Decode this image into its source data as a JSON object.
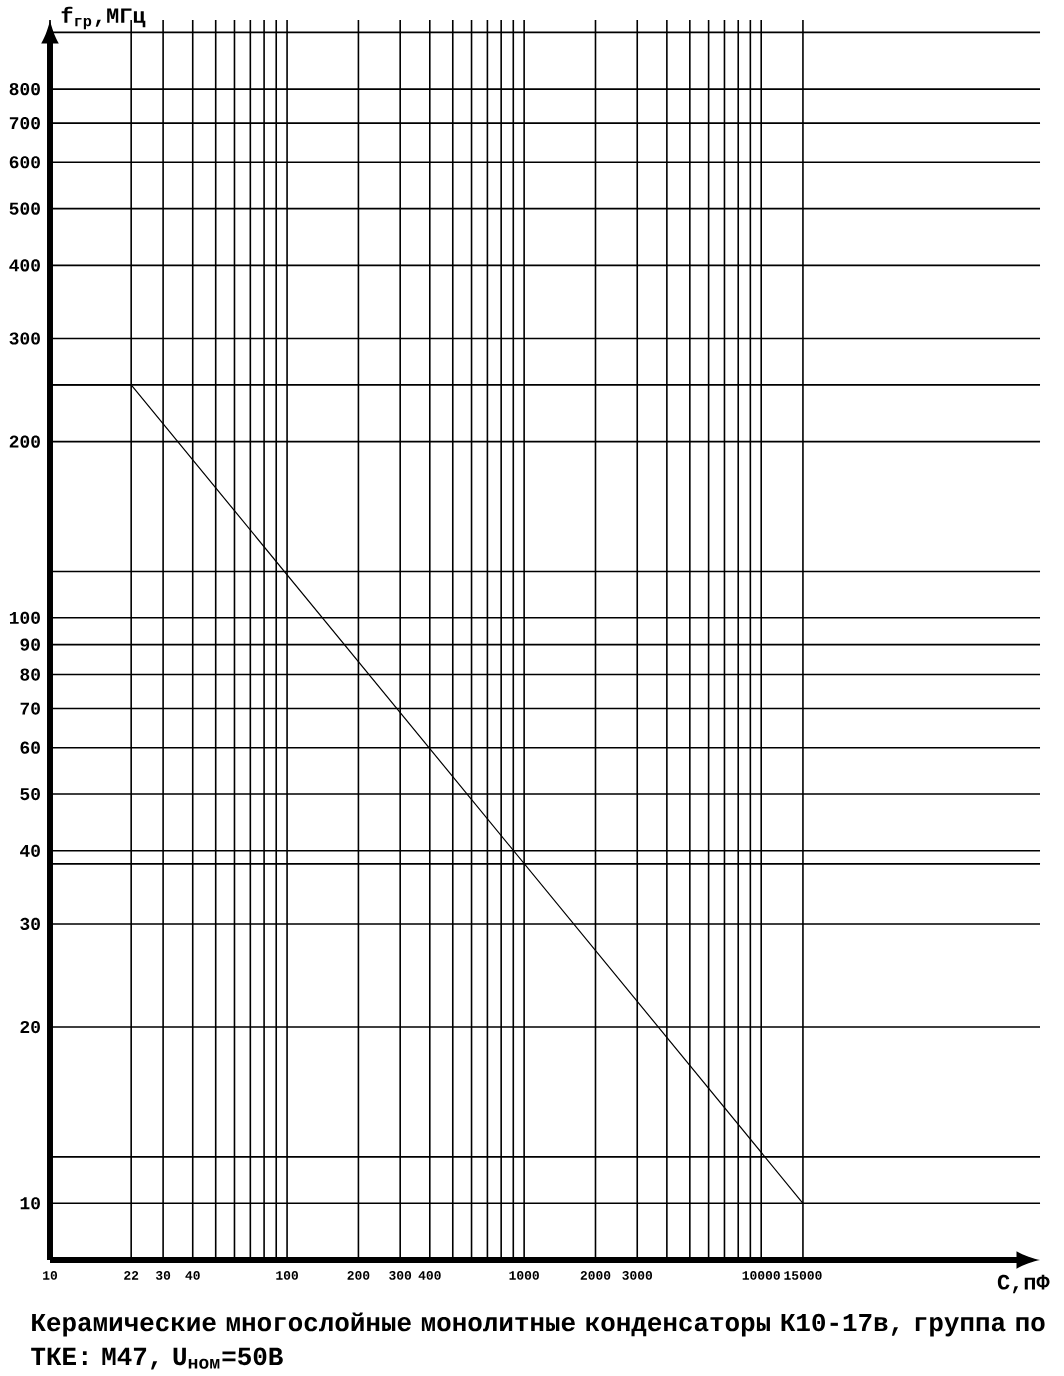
{
  "chart_data": {
    "type": "line",
    "xlabel": "С,пФ",
    "ylabel": "f$_{гр}$,МГц",
    "log": "xy",
    "grid": true,
    "marker": "none",
    "line_style": "solid",
    "annotations": [
      "Керамические многослойные монолитные конденсаторы К10-17в, группа по ТКЕ: М47, U$_{ном}$=50В"
    ],
    "xlim": [
      10,
      150000
    ],
    "ylim": [
      8,
      1050
    ],
    "xticks": [
      10,
      22,
      30,
      40,
      {
        "value": 50,
        "label": null
      },
      {
        "value": 60,
        "label": null
      },
      {
        "value": 70,
        "label": null
      },
      {
        "value": 80,
        "label": null
      },
      {
        "value": 90,
        "label": null
      },
      100,
      200,
      300,
      400,
      {
        "value": 500,
        "label": null
      },
      {
        "value": 600,
        "label": null
      },
      {
        "value": 700,
        "label": null
      },
      {
        "value": 800,
        "label": null
      },
      {
        "value": 900,
        "label": null
      },
      1000,
      2000,
      3000,
      {
        "value": 4000,
        "label": null
      },
      {
        "value": 5000,
        "label": null
      },
      {
        "value": 6000,
        "label": null
      },
      {
        "value": 7000,
        "label": null
      },
      {
        "value": 8000,
        "label": null
      },
      {
        "value": 9000,
        "label": null
      },
      10000,
      15000
    ],
    "yticks": [
      10,
      {
        "value": 12,
        "label": null
      },
      20,
      30,
      {
        "value": 38,
        "label": null
      },
      40,
      50,
      60,
      70,
      80,
      90,
      100,
      {
        "value": 120,
        "label": null
      },
      200,
      {
        "value": 250,
        "label": null
      },
      300,
      400,
      500,
      600,
      700,
      800,
      {
        "value": 1000,
        "label": null
      }
    ],
    "series": [
      {
        "color": "#000000",
        "x": [
          10,
          22,
          15000
        ],
        "values": [
          250,
          250,
          10
        ]
      }
    ]
  }
}
